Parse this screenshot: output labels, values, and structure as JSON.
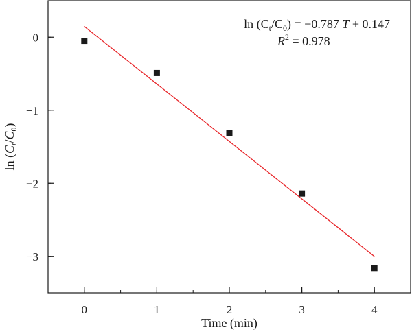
{
  "chart_data": {
    "type": "scatter",
    "x": [
      0,
      1,
      2,
      3,
      4
    ],
    "y": [
      -0.05,
      -0.49,
      -1.31,
      -2.14,
      -3.16
    ],
    "fit_line": {
      "slope": -0.787,
      "intercept": 0.147,
      "x_range": [
        0,
        4
      ],
      "color": "#e8262a"
    },
    "marker_color": "#1a1a1a",
    "xlabel": "Time (min)",
    "ylabel_parts": {
      "prefix": "ln (",
      "c1": "C",
      "sub1": "t",
      "slash": "/",
      "c2": "C",
      "sub2": "0",
      "suffix": ")"
    },
    "xlim": [
      -0.5,
      4.5
    ],
    "ylim": [
      -3.5,
      0.5
    ],
    "x_ticks": [
      0,
      1,
      2,
      3,
      4
    ],
    "x_tick_labels": [
      "0",
      "1",
      "2",
      "3",
      "4"
    ],
    "y_ticks": [
      0,
      -1,
      -2,
      -3
    ],
    "y_tick_labels": [
      "0",
      "−1",
      "−2",
      "−3"
    ],
    "equation": {
      "lhs_prefix": "ln (C",
      "lhs_sub1": "t",
      "lhs_mid": "/C",
      "lhs_sub2": "0",
      "lhs_suffix": ") = −0.787 ",
      "var": "T",
      "rhs": " + 0.147",
      "r2_var": "R",
      "r2_sup": "2",
      "r2_value": " = 0.978"
    },
    "grid": false,
    "legend": "none"
  }
}
